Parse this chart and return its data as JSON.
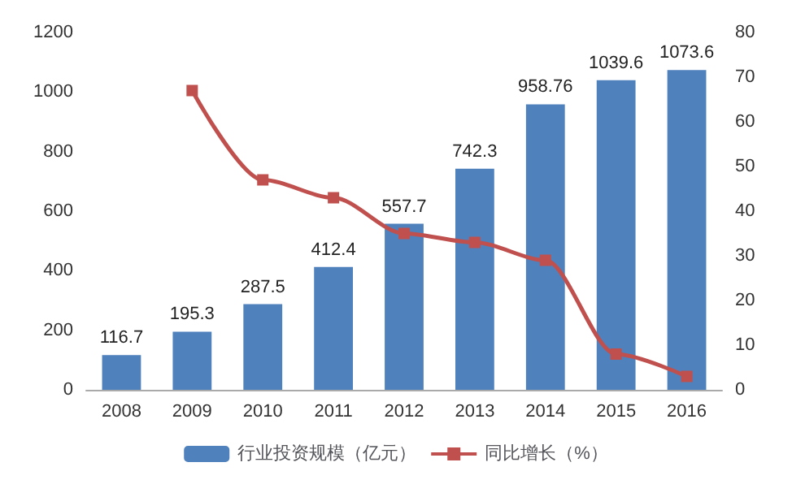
{
  "chart_data": {
    "type": "bar",
    "categories": [
      "2008",
      "2009",
      "2010",
      "2011",
      "2012",
      "2013",
      "2014",
      "2015",
      "2016"
    ],
    "series": [
      {
        "name": "行业投资规模（亿元）",
        "color": "#4f81bd",
        "values": [
          116.7,
          195.3,
          287.5,
          412.4,
          557.7,
          742.3,
          958.76,
          1039.6,
          1073.6
        ],
        "data_labels": true
      },
      {
        "name": "同比增长（%）",
        "type": "line",
        "axis": "y2",
        "color": "#c0504d",
        "marker": "square",
        "values": [
          null,
          67,
          47,
          43,
          35,
          33,
          29,
          8,
          3
        ]
      }
    ],
    "ylim": [
      0,
      1200
    ],
    "yticks": [
      0,
      200,
      400,
      600,
      800,
      1000,
      1200
    ],
    "y2lim": [
      0,
      80
    ],
    "y2ticks": [
      0,
      10,
      20,
      30,
      40,
      50,
      60,
      70,
      80
    ],
    "grid": false,
    "legend": "bottom"
  }
}
